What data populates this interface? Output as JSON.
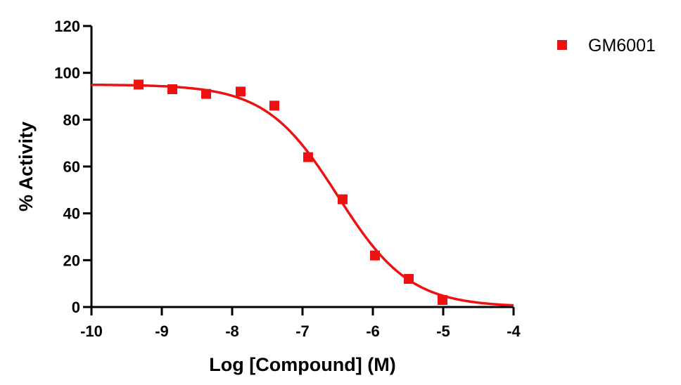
{
  "chart_data": {
    "type": "scatter",
    "title": "",
    "xlabel": "Log [Compound] (M)",
    "ylabel": "% Activity",
    "xlim": [
      -10,
      -4
    ],
    "ylim": [
      0,
      120
    ],
    "xticks": [
      -10,
      -9,
      -8,
      -7,
      -6,
      -5,
      -4
    ],
    "yticks": [
      0,
      20,
      40,
      60,
      80,
      100,
      120
    ],
    "grid": false,
    "legend_position": "top-right",
    "series": [
      {
        "name": "GM6001",
        "color": "#ee1111",
        "marker": "square",
        "points": [
          {
            "x": -9.33,
            "y": 95
          },
          {
            "x": -8.85,
            "y": 93
          },
          {
            "x": -8.37,
            "y": 91
          },
          {
            "x": -7.88,
            "y": 92
          },
          {
            "x": -7.4,
            "y": 86
          },
          {
            "x": -6.92,
            "y": 64
          },
          {
            "x": -6.43,
            "y": 46
          },
          {
            "x": -5.97,
            "y": 22
          },
          {
            "x": -5.49,
            "y": 12
          },
          {
            "x": -5.01,
            "y": 3
          }
        ],
        "fit": {
          "model": "sigmoidal dose-response",
          "top": 95,
          "bottom": 0,
          "log_ec50": -6.5,
          "hill_slope": -0.85
        }
      }
    ]
  }
}
